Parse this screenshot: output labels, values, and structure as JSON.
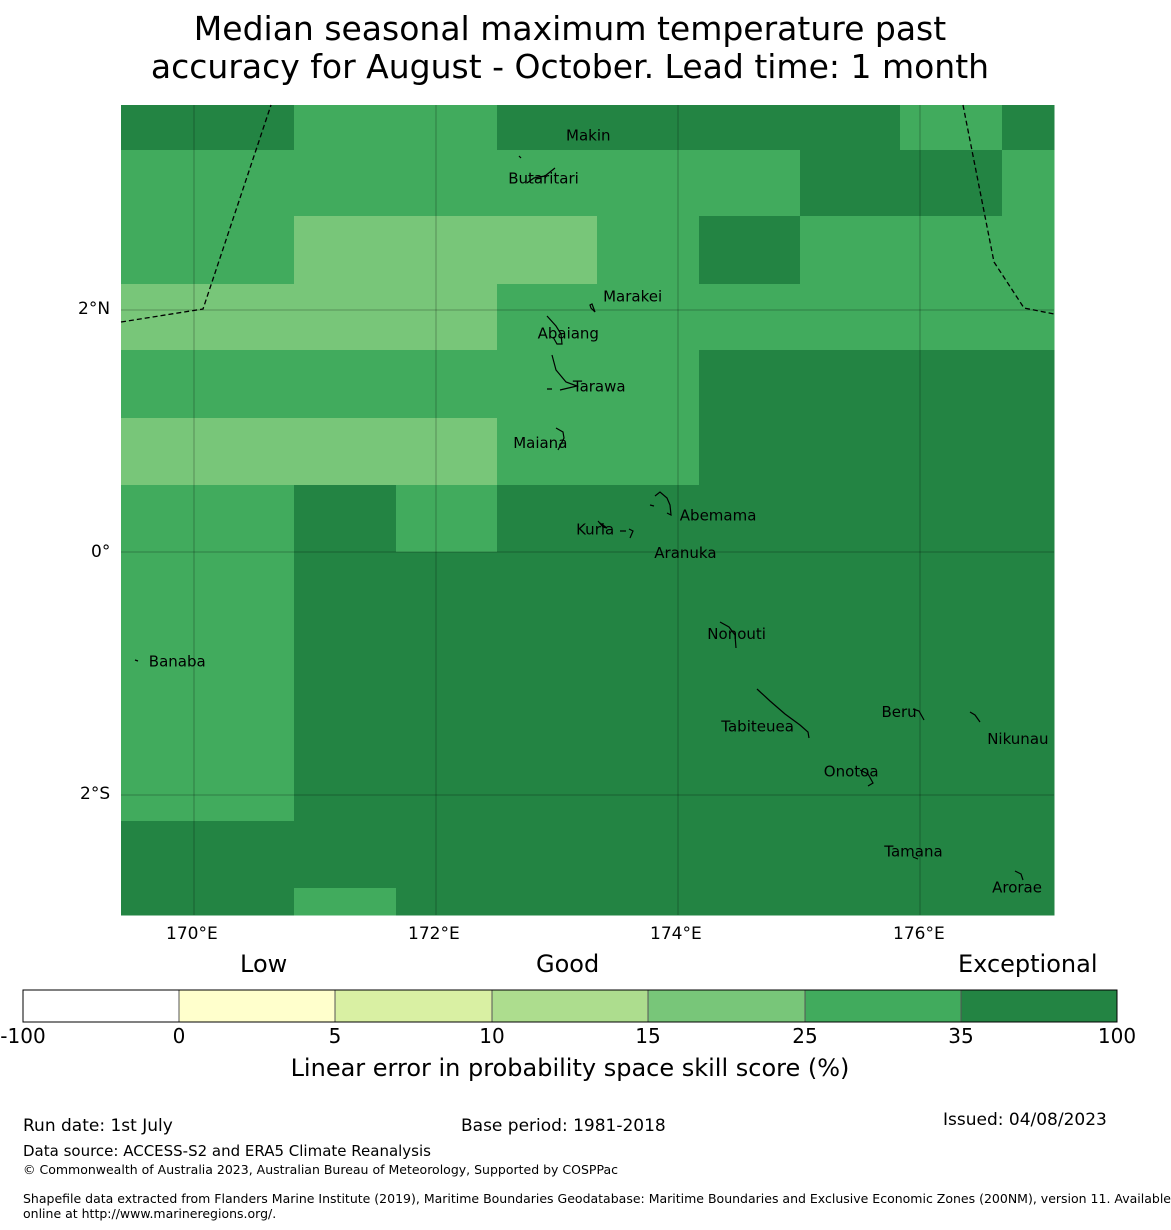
{
  "title": {
    "line1": "Median seasonal maximum temperature past",
    "line2": "accuracy for August - October. Lead time: 1 month"
  },
  "axes": {
    "lon_labels": [
      "170°E",
      "172°E",
      "174°E",
      "176°E"
    ],
    "lat_labels": [
      "2°N",
      "0°",
      "2°S"
    ]
  },
  "map_data": {
    "lon_range": [
      169.4,
      177.1
    ],
    "lat_range": [
      -3.0,
      3.7
    ],
    "grid_lon_edges": [
      169.4,
      170.83,
      171.67,
      172.5,
      173.33,
      174.17,
      175.0,
      175.83,
      176.67,
      177.1
    ],
    "grid_lat_edges": [
      3.7,
      3.33,
      2.78,
      2.22,
      1.67,
      1.11,
      0.56,
      0.0,
      -0.56,
      -1.11,
      -1.68,
      -2.22,
      -2.78,
      -3.0
    ],
    "category_colors": [
      "#ffffff",
      "#ffffcc",
      "#d9f0a3",
      "#addd8e",
      "#78c679",
      "#41ab5d",
      "#238443"
    ],
    "category_grid": [
      [
        6,
        5,
        5,
        6,
        6,
        6,
        6,
        5,
        6
      ],
      [
        5,
        5,
        5,
        5,
        5,
        5,
        6,
        6,
        5
      ],
      [
        5,
        4,
        4,
        4,
        5,
        6,
        5,
        5,
        5
      ],
      [
        4,
        4,
        4,
        5,
        5,
        5,
        5,
        5,
        5
      ],
      [
        5,
        5,
        5,
        5,
        5,
        6,
        6,
        6,
        6
      ],
      [
        4,
        4,
        4,
        5,
        5,
        6,
        6,
        6,
        6
      ],
      [
        5,
        6,
        5,
        6,
        6,
        6,
        6,
        6,
        6
      ],
      [
        5,
        6,
        6,
        6,
        6,
        6,
        6,
        6,
        6
      ],
      [
        5,
        6,
        6,
        6,
        6,
        6,
        6,
        6,
        6
      ],
      [
        5,
        6,
        6,
        6,
        6,
        6,
        6,
        6,
        6
      ],
      [
        5,
        6,
        6,
        6,
        6,
        6,
        6,
        6,
        6
      ],
      [
        6,
        6,
        6,
        6,
        6,
        6,
        6,
        6,
        6
      ],
      [
        6,
        5,
        6,
        6,
        6,
        6,
        6,
        6,
        6
      ]
    ],
    "islands": [
      {
        "name": "Makin",
        "lon": 172.99,
        "lat": 3.38
      },
      {
        "name": "Butaritari",
        "lon": 172.81,
        "lat": 3.15
      },
      {
        "name": "Marakei",
        "lon": 173.28,
        "lat": 2.0
      },
      {
        "name": "Abaiang",
        "lon": 173.02,
        "lat": 1.85
      },
      {
        "name": "Tarawa",
        "lon": 173.08,
        "lat": 1.38
      },
      {
        "name": "Maiana",
        "lon": 173.0,
        "lat": 0.93
      },
      {
        "name": "Abemama",
        "lon": 173.88,
        "lat": 0.38
      },
      {
        "name": "Kuria",
        "lon": 173.42,
        "lat": 0.23
      },
      {
        "name": "Aranuka",
        "lon": 173.62,
        "lat": 0.15
      },
      {
        "name": "Banaba",
        "lon": 169.53,
        "lat": -0.87
      },
      {
        "name": "Nonouti",
        "lon": 174.42,
        "lat": -0.65
      },
      {
        "name": "Tabiteuea",
        "lon": 174.8,
        "lat": -1.3
      },
      {
        "name": "Beru",
        "lon": 175.99,
        "lat": -1.33
      },
      {
        "name": "Nikunau",
        "lon": 176.45,
        "lat": -1.37
      },
      {
        "name": "Onotoa",
        "lon": 175.58,
        "lat": -1.83
      },
      {
        "name": "Tamana",
        "lon": 175.98,
        "lat": -2.5
      },
      {
        "name": "Arorae",
        "lon": 176.82,
        "lat": -2.65
      }
    ]
  },
  "colorbar": {
    "categories": [
      "Low",
      "Good",
      "Exceptional"
    ],
    "ticks": [
      "-100",
      "0",
      "5",
      "10",
      "15",
      "25",
      "35",
      "100"
    ],
    "colors": [
      "#ffffff",
      "#ffffcc",
      "#d9f0a3",
      "#addd8e",
      "#78c679",
      "#41ab5d",
      "#238443"
    ],
    "label": "Linear error in probability space skill score (%)"
  },
  "footer": {
    "run_date": "Run date: 1st July",
    "base_period": "Base period: 1981-2018",
    "issued": "Issued: 04/08/2023",
    "data_source": "Data source: ACCESS-S2 and ERA5 Climate Reanalysis",
    "copyright": "© Commonwealth of Australia 2023, Australian Bureau of Meteorology, Supported by COSPPac",
    "shapefile_line1": "Shapefile data extracted from Flanders Marine Institute (2019), Maritime Boundaries Geodatabase: Maritime Boundaries and Exclusive Economic Zones (200NM), version 11. Available",
    "shapefile_line2": "online at http://www.marineregions.org/."
  }
}
